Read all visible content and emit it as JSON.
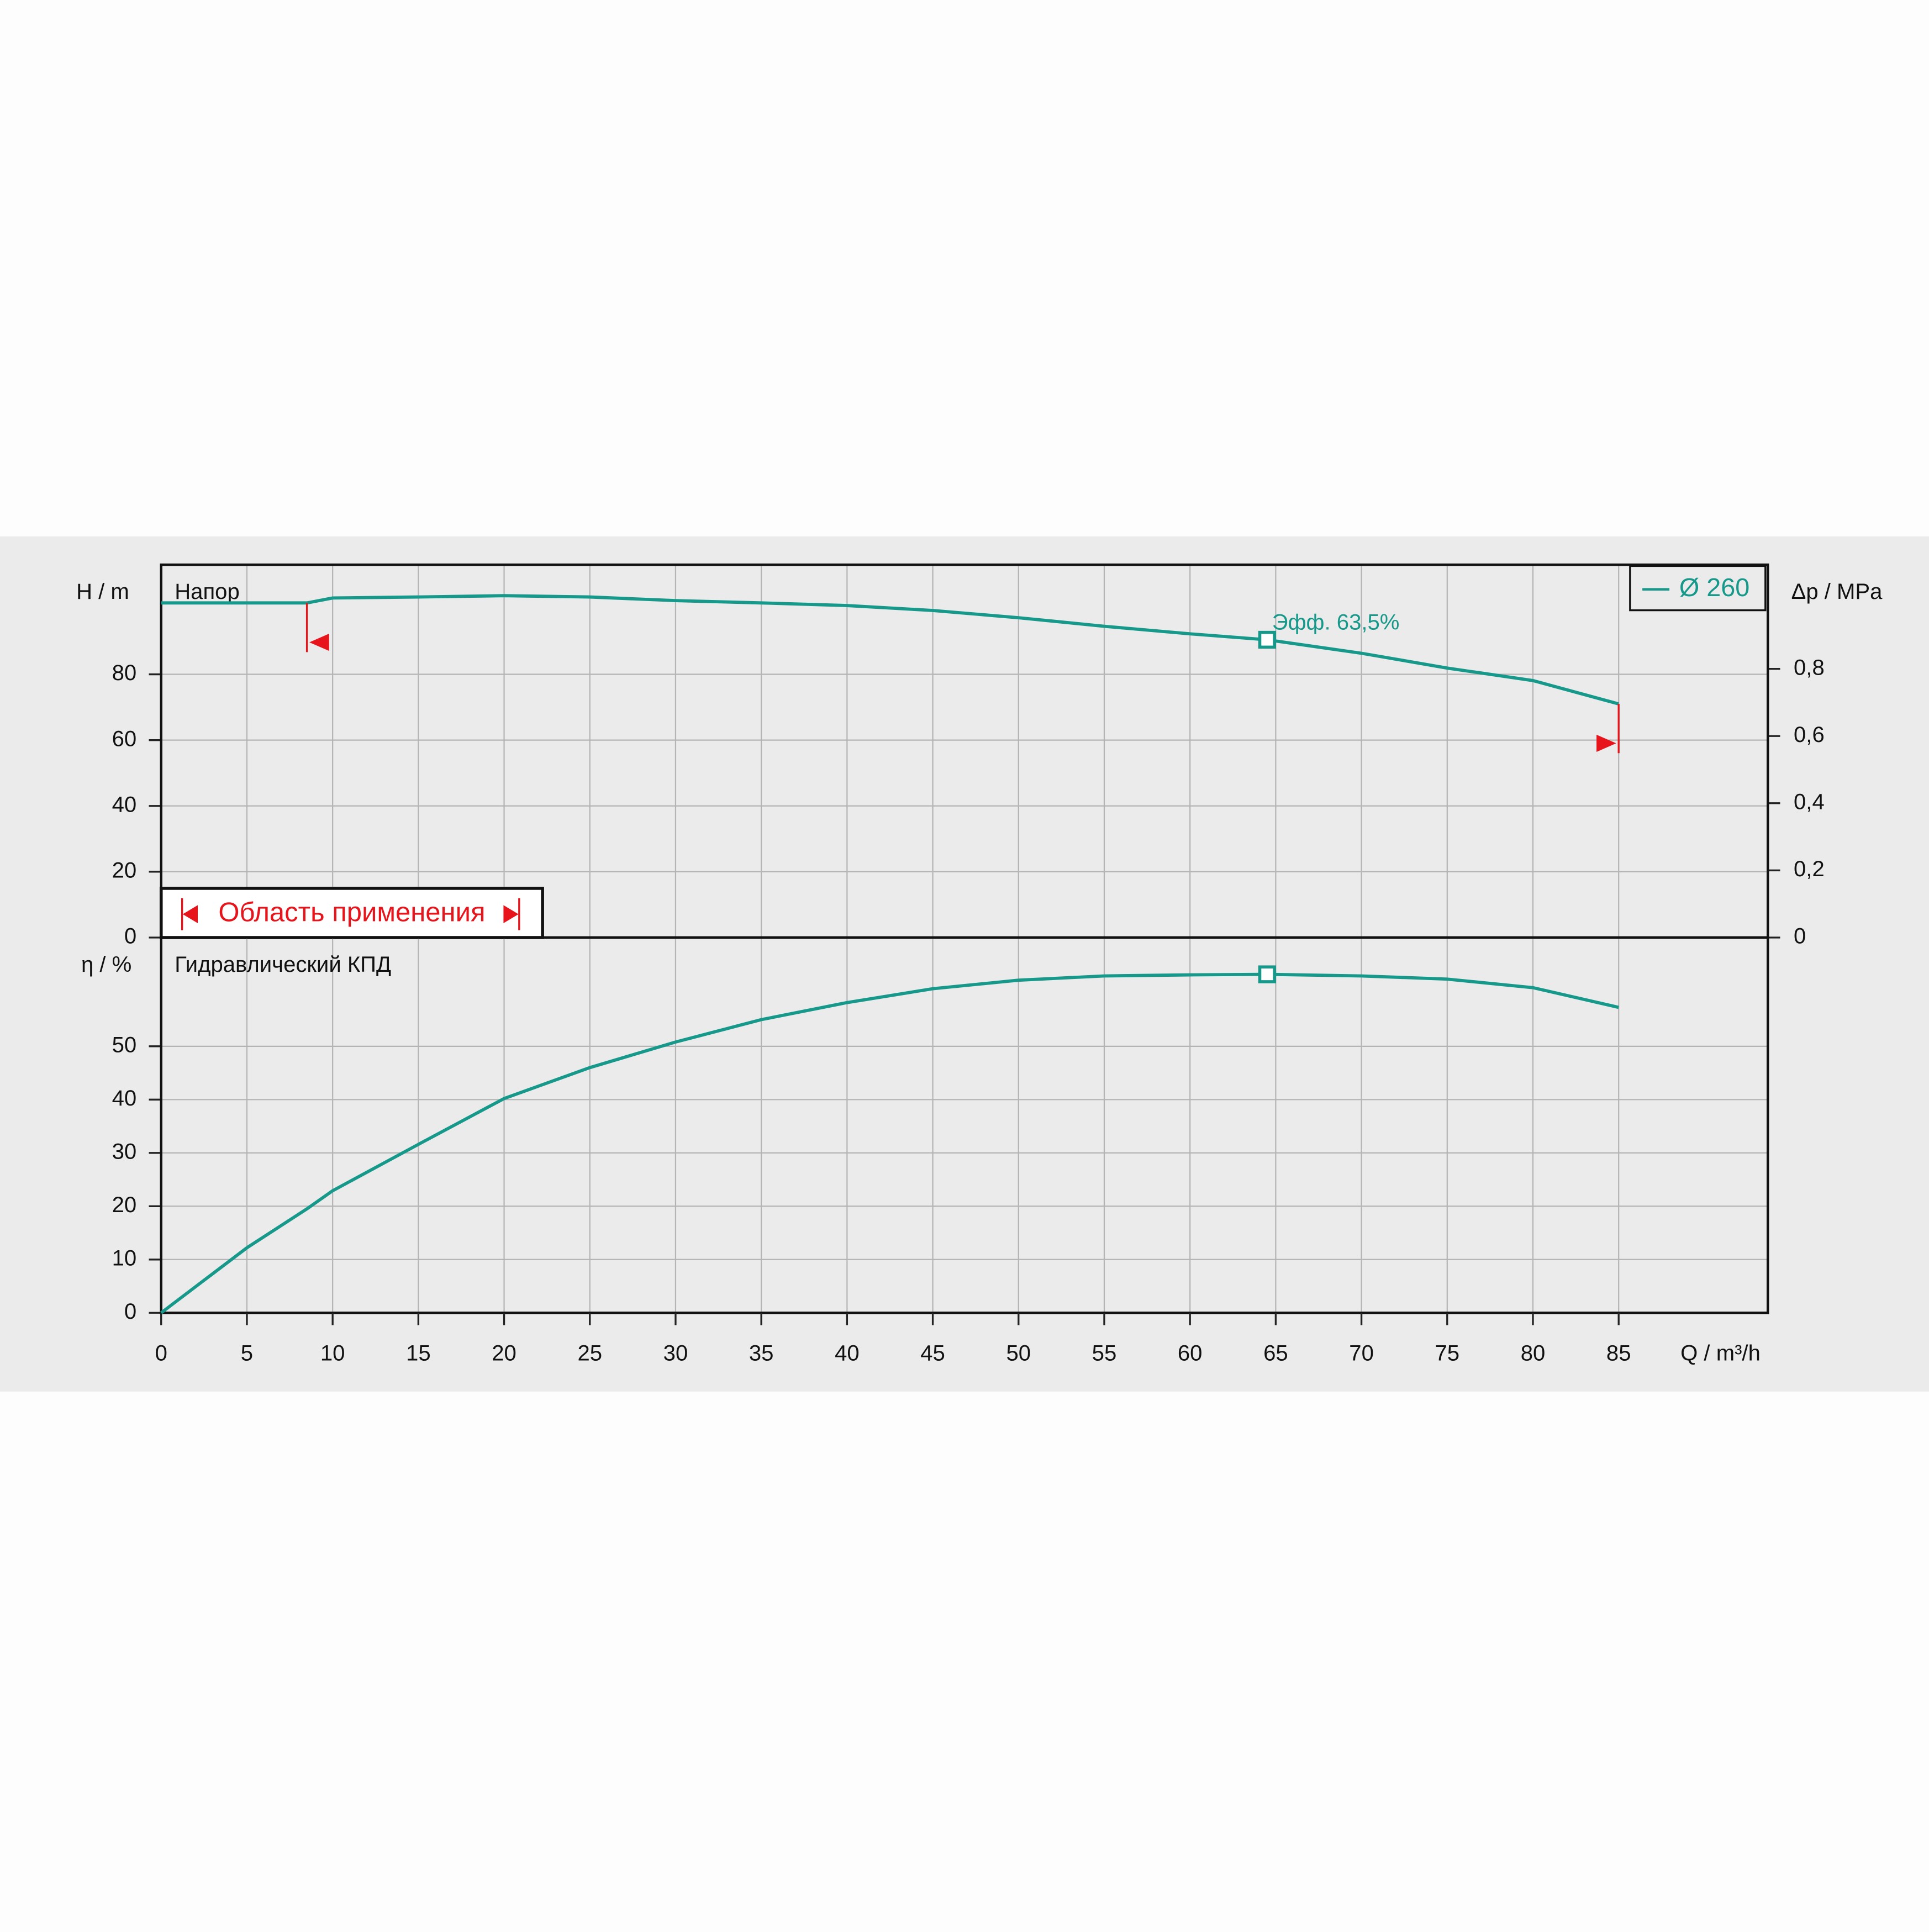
{
  "chart_data": [
    {
      "type": "line",
      "title": "Напор",
      "y_label": "H / m",
      "y2_label": "Δp / MPa",
      "x": [
        0,
        5,
        8.5,
        10,
        15,
        20,
        25,
        30,
        35,
        40,
        45,
        50,
        55,
        60,
        64.5,
        70,
        75,
        80,
        85
      ],
      "series": [
        {
          "name": "Ø 260",
          "color": "#16998a",
          "values": [
            101.7,
            101.7,
            101.7,
            103.2,
            103.5,
            103.9,
            103.5,
            102.4,
            101.7,
            100.9,
            99.4,
            97.2,
            94.6,
            92.3,
            90.5,
            86.4,
            81.9,
            78.1,
            71.0
          ]
        }
      ],
      "xlim": [
        0,
        93.7
      ],
      "ylim": [
        0,
        113.3
      ],
      "yticks": [
        0,
        20,
        40,
        60,
        80
      ],
      "y2lim": [
        0,
        1.11
      ],
      "y2ticks": [
        0,
        {
          "value": 0.2,
          "label": "0,2"
        },
        {
          "value": 0.4,
          "label": "0,4"
        },
        {
          "value": 0.6,
          "label": "0,6"
        },
        {
          "value": 0.8,
          "label": "0,8"
        }
      ],
      "grid": true,
      "legend": "top-right",
      "operating_point": {
        "x": 64.5,
        "y": 90.5,
        "label": "Эфф.  63,5%"
      },
      "application_range": {
        "label": "Область применения",
        "x": [
          8.5,
          85
        ],
        "color": "#e8141b"
      }
    },
    {
      "type": "line",
      "title": "Гидравлический КПД",
      "y_label": "η / %",
      "x_label": "Q / m³/h",
      "x": [
        0,
        5,
        8.5,
        10,
        15,
        20,
        25,
        30,
        35,
        40,
        45,
        50,
        55,
        60,
        64.5,
        70,
        75,
        80,
        85
      ],
      "series": [
        {
          "name": "Ø 260",
          "color": "#16998a",
          "values": [
            0,
            12.2,
            19.5,
            22.9,
            31.6,
            40.2,
            46,
            50.8,
            55,
            58.2,
            60.8,
            62.4,
            63.2,
            63.4,
            63.5,
            63.2,
            62.6,
            61,
            57.3
          ]
        }
      ],
      "xlim": [
        0,
        93.7
      ],
      "xticks": [
        0,
        5,
        10,
        15,
        20,
        25,
        30,
        35,
        40,
        45,
        50,
        55,
        60,
        65,
        70,
        75,
        80,
        85
      ],
      "ylim": [
        0,
        70.4
      ],
      "yticks": [
        0,
        10,
        20,
        30,
        40,
        50
      ],
      "grid": true,
      "operating_point": {
        "x": 64.5,
        "y": 63.5
      }
    }
  ]
}
